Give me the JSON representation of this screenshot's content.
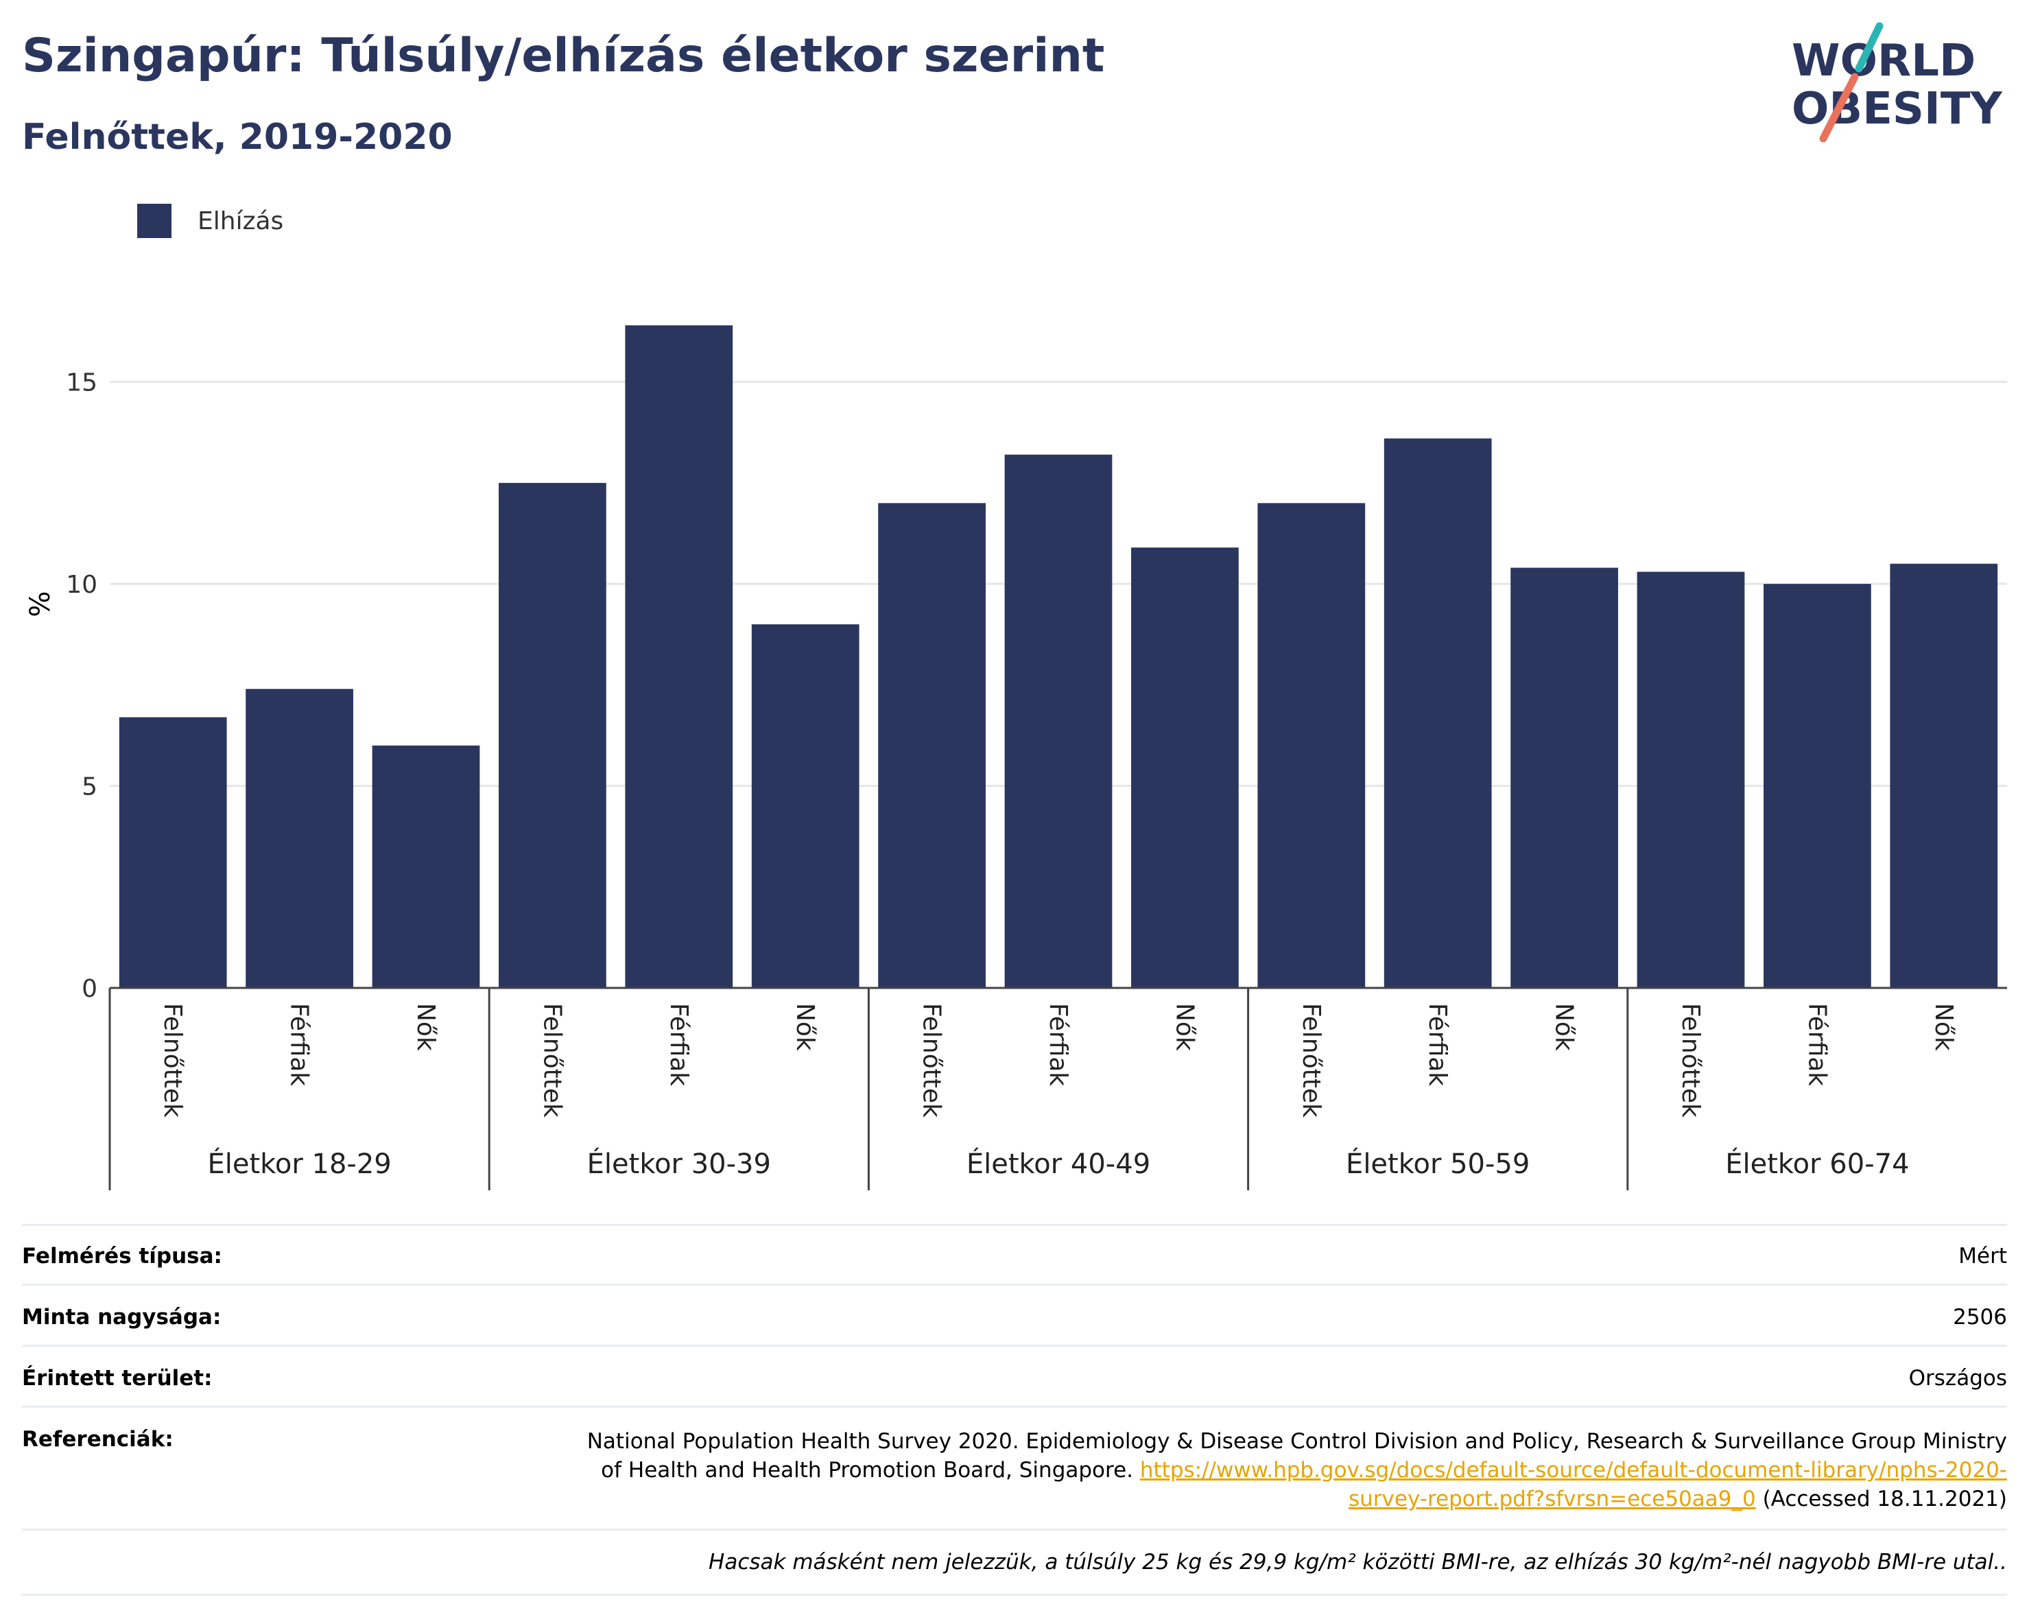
{
  "header": {
    "title": "Szingapúr: Túlsúly/elhízás életkor szerint",
    "subtitle": "Felnőttek, 2019-2020"
  },
  "logo": {
    "line1": "WORLD",
    "line2": "OBESITY",
    "colors": {
      "text": "#2b365f",
      "slash_top": "#2bb4b4",
      "slash_bottom": "#e8725c"
    }
  },
  "colors": {
    "bar": "#2b365f",
    "grid": "#e6e6e6",
    "axis": "#444444"
  },
  "chart_data": {
    "type": "bar",
    "title": "Szingapúr: Túlsúly/elhízás életkor szerint",
    "subtitle": "Felnőttek, 2019-2020",
    "ylabel": "%",
    "xlabel": "",
    "ylim": [
      0,
      18
    ],
    "yticks": [
      0,
      5,
      10,
      15
    ],
    "grid": true,
    "legend_position": "top-left",
    "groups": [
      "Életkor 18-29",
      "Életkor 30-39",
      "Életkor 40-49",
      "Életkor 50-59",
      "Életkor 60-74"
    ],
    "subcategories": [
      "Felnőttek",
      "Férfiak",
      "Nők"
    ],
    "series": [
      {
        "name": "Elhízás",
        "values": [
          [
            6.7,
            7.4,
            6.0
          ],
          [
            12.5,
            16.4,
            9.0
          ],
          [
            12.0,
            13.2,
            10.9
          ],
          [
            12.0,
            13.6,
            10.4
          ],
          [
            10.3,
            10.0,
            10.5
          ]
        ]
      }
    ]
  },
  "meta": {
    "rows": [
      {
        "label": "Felmérés típusa:",
        "value": "Mért"
      },
      {
        "label": "Minta nagysága:",
        "value": "2506"
      },
      {
        "label": "Érintett terület:",
        "value": "Országos"
      }
    ],
    "references": {
      "label": "Referenciák:",
      "text_before": "National Population Health Survey 2020. Epidemiology & Disease Control Division and Policy, Research & Surveillance Group Ministry of Health and Health Promotion Board, Singapore.",
      "link": "https://www.hpb.gov.sg/docs/default-source/default-document-library/nphs-2020-survey-report.pdf?sfvrsn=ece50aa9_0",
      "text_after": "(Accessed 18.11.2021)"
    },
    "note": "Hacsak másként nem jelezzük, a túlsúly 25 kg és 29,9 kg/m² közötti BMI-re, az elhízás 30 kg/m²-nél nagyobb BMI-re utal.."
  }
}
